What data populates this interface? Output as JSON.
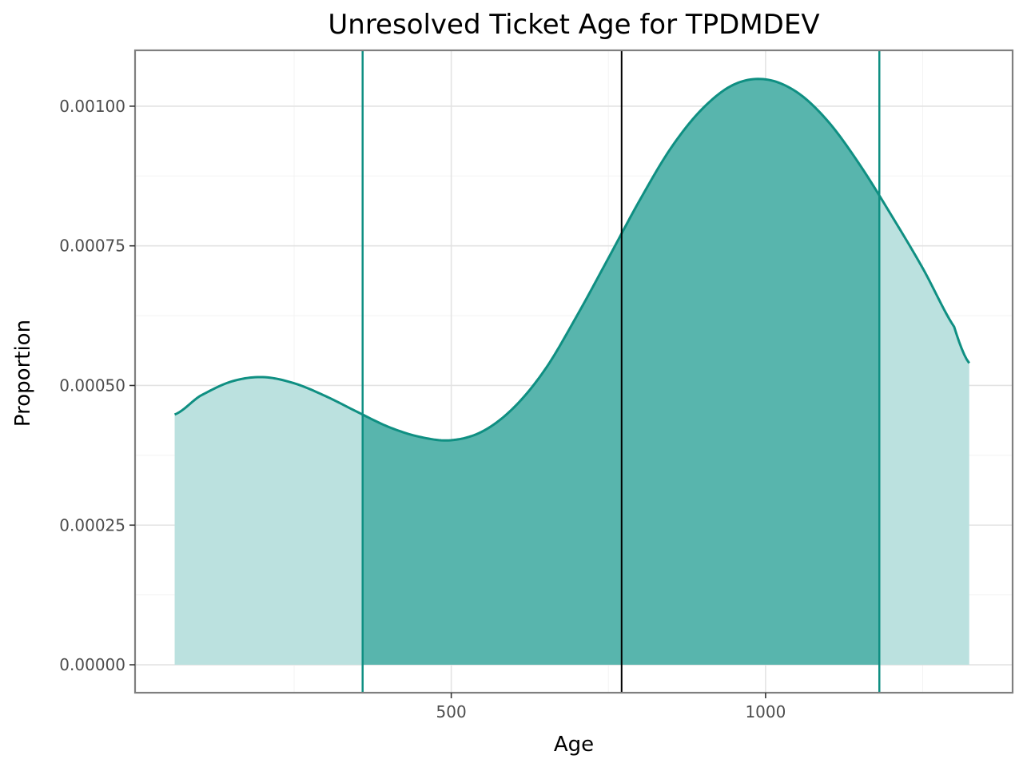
{
  "chart_data": {
    "type": "area",
    "title": "Unresolved Ticket Age for TPDMDEV",
    "xlabel": "Age",
    "ylabel": "Proportion",
    "xlim": [
      -3,
      1393
    ],
    "ylim": [
      -5e-05,
      0.0011
    ],
    "x_ticks": [
      500,
      1000
    ],
    "x_tick_labels": [
      "500",
      "1000"
    ],
    "y_ticks": [
      0,
      0.00025,
      0.0005,
      0.00075,
      0.001
    ],
    "y_tick_labels": [
      "0.00000",
      "0.00025",
      "0.00050",
      "0.00075",
      "0.00100"
    ],
    "grid": true,
    "legend": "none",
    "series": [
      {
        "x": [
          60,
          100,
          150,
          200,
          250,
          300,
          350,
          400,
          450,
          500,
          550,
          600,
          650,
          700,
          750,
          800,
          850,
          900,
          950,
          1000,
          1050,
          1100,
          1150,
          1200,
          1250,
          1300,
          1324
        ],
        "values": [
          0.000448,
          0.000481,
          0.000507,
          0.000515,
          0.000504,
          0.000481,
          0.000453,
          0.000426,
          0.000408,
          0.000402,
          0.000418,
          0.000461,
          0.00053,
          0.000625,
          0.000728,
          0.000832,
          0.000926,
          0.000996,
          0.001039,
          0.001048,
          0.001025,
          0.000972,
          0.000895,
          0.000805,
          0.00071,
          0.000605,
          0.00054
        ]
      }
    ],
    "interval": {
      "low": 359,
      "high": 1181
    },
    "center_line": 771,
    "colors": {
      "line": "#0f8f82",
      "fill_inner": "#58b5ad",
      "fill_outer": "#bbe1df",
      "center": "#000000",
      "panel_border": "#7f7f7f",
      "grid_major": "#e3e3e3",
      "grid_minor": "#f3f3f3",
      "tick_text": "#4d4d4d"
    }
  }
}
